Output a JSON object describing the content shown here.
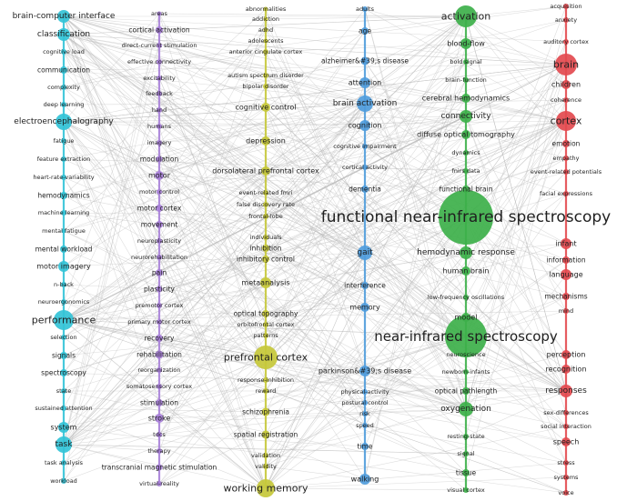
{
  "clusters": [
    {
      "id": "cyan",
      "color": "#33c3d7",
      "nodes": [
        {
          "label": "brain-computer interface",
          "y": 18,
          "r": 7
        },
        {
          "label": "classification",
          "y": 38,
          "r": 7
        },
        {
          "label": "cognitive load",
          "y": 57,
          "r": 3
        },
        {
          "label": "communication",
          "y": 77,
          "r": 4
        },
        {
          "label": "complexity",
          "y": 96,
          "r": 3
        },
        {
          "label": "deep learning",
          "y": 115,
          "r": 3
        },
        {
          "label": "electroencephalography",
          "y": 134,
          "r": 9
        },
        {
          "label": "fatigue",
          "y": 155,
          "r": 3
        },
        {
          "label": "feature extraction",
          "y": 175,
          "r": 3
        },
        {
          "label": "heart-rate-variability",
          "y": 195,
          "r": 3
        },
        {
          "label": "hemodynamics",
          "y": 215,
          "r": 4
        },
        {
          "label": "machine learning",
          "y": 234,
          "r": 3
        },
        {
          "label": "mental fatigue",
          "y": 254,
          "r": 2.5
        },
        {
          "label": "mental workload",
          "y": 274,
          "r": 4
        },
        {
          "label": "motor imagery",
          "y": 293,
          "r": 6
        },
        {
          "label": "n-back",
          "y": 313,
          "r": 3
        },
        {
          "label": "neuroergonomics",
          "y": 332,
          "r": 3
        },
        {
          "label": "performance",
          "y": 352,
          "r": 11
        },
        {
          "label": "selection",
          "y": 371,
          "r": 3
        },
        {
          "label": "signals",
          "y": 391,
          "r": 4
        },
        {
          "label": "spectroscopy",
          "y": 410,
          "r": 4
        },
        {
          "label": "state",
          "y": 430,
          "r": 3
        },
        {
          "label": "sustained attention",
          "y": 449,
          "r": 3
        },
        {
          "label": "system",
          "y": 470,
          "r": 6
        },
        {
          "label": "task",
          "y": 489,
          "r": 9
        },
        {
          "label": "task analysis",
          "y": 509,
          "r": 3
        },
        {
          "label": "workload",
          "y": 529,
          "r": 3
        }
      ]
    },
    {
      "id": "purple",
      "color": "#a77fd8",
      "nodes": [
        {
          "label": "areas",
          "y": 15,
          "r": 2.5
        },
        {
          "label": "cortical activation",
          "y": 33,
          "r": 4
        },
        {
          "label": "direct-current stimulation",
          "y": 50,
          "r": 3
        },
        {
          "label": "effective connectivity",
          "y": 68,
          "r": 3
        },
        {
          "label": "excitability",
          "y": 86,
          "r": 3
        },
        {
          "label": "feedback",
          "y": 103,
          "r": 3
        },
        {
          "label": "hand",
          "y": 121,
          "r": 3
        },
        {
          "label": "humans",
          "y": 139,
          "r": 3
        },
        {
          "label": "imagery",
          "y": 157,
          "r": 3
        },
        {
          "label": "modulation",
          "y": 175,
          "r": 3.5
        },
        {
          "label": "motor",
          "y": 193,
          "r": 5
        },
        {
          "label": "motor control",
          "y": 211,
          "r": 3
        },
        {
          "label": "motor cortex",
          "y": 229,
          "r": 4
        },
        {
          "label": "movement",
          "y": 247,
          "r": 4
        },
        {
          "label": "neuroplasticity",
          "y": 265,
          "r": 3
        },
        {
          "label": "neurorehabilitation",
          "y": 283,
          "r": 3
        },
        {
          "label": "pain",
          "y": 300,
          "r": 4
        },
        {
          "label": "plasticity",
          "y": 318,
          "r": 3.5
        },
        {
          "label": "premotor cortex",
          "y": 336,
          "r": 3
        },
        {
          "label": "primary motor cortex",
          "y": 354,
          "r": 3
        },
        {
          "label": "recovery",
          "y": 372,
          "r": 4
        },
        {
          "label": "rehabilitation",
          "y": 390,
          "r": 4.5
        },
        {
          "label": "reorganization",
          "y": 407,
          "r": 3
        },
        {
          "label": "somatosensory cortex",
          "y": 425,
          "r": 3
        },
        {
          "label": "stimulation",
          "y": 443,
          "r": 4
        },
        {
          "label": "stroke",
          "y": 460,
          "r": 5
        },
        {
          "label": "tdcs",
          "y": 478,
          "r": 3
        },
        {
          "label": "therapy",
          "y": 496,
          "r": 3
        },
        {
          "label": "transcranial magnetic stimulation",
          "y": 514,
          "r": 3.5
        },
        {
          "label": "virtual-reality",
          "y": 532,
          "r": 3
        }
      ]
    },
    {
      "id": "olive",
      "color": "#c5c83a",
      "nodes": [
        {
          "label": "abnormalities",
          "y": 10,
          "r": 2.5
        },
        {
          "label": "addiction",
          "y": 21,
          "r": 2.5
        },
        {
          "label": "adhd",
          "y": 33,
          "r": 2.5
        },
        {
          "label": "adolescents",
          "y": 45,
          "r": 2.5
        },
        {
          "label": "anterior cingulate cortex",
          "y": 57,
          "r": 3
        },
        {
          "label": "autism spectrum disorder",
          "y": 83,
          "r": 3
        },
        {
          "label": "bipolar disorder",
          "y": 95,
          "r": 3
        },
        {
          "label": "cognitive control",
          "y": 118,
          "r": 5
        },
        {
          "label": "depression",
          "y": 155,
          "r": 5
        },
        {
          "label": "dorsolateral prefrontal cortex",
          "y": 188,
          "r": 5
        },
        {
          "label": "event-related fmri",
          "y": 212,
          "r": 3
        },
        {
          "label": "false discovery rate",
          "y": 225,
          "r": 3
        },
        {
          "label": "frontal-lobe",
          "y": 238,
          "r": 3
        },
        {
          "label": "individuals",
          "y": 261,
          "r": 3
        },
        {
          "label": "inhibition",
          "y": 273,
          "r": 4
        },
        {
          "label": "inhibitory control",
          "y": 285,
          "r": 4
        },
        {
          "label": "metaanalysis",
          "y": 311,
          "r": 6
        },
        {
          "label": "optical topography",
          "y": 345,
          "r": 4
        },
        {
          "label": "orbitofrontal cortex",
          "y": 357,
          "r": 3
        },
        {
          "label": "patterns",
          "y": 369,
          "r": 3
        },
        {
          "label": "prefrontal cortex",
          "y": 393,
          "r": 13
        },
        {
          "label": "response-inhibition",
          "y": 418,
          "r": 3
        },
        {
          "label": "reward",
          "y": 430,
          "r": 3
        },
        {
          "label": "schizophrenia",
          "y": 453,
          "r": 4.5
        },
        {
          "label": "spatial registration",
          "y": 478,
          "r": 4.5
        },
        {
          "label": "validation",
          "y": 501,
          "r": 3
        },
        {
          "label": "validity",
          "y": 513,
          "r": 3
        },
        {
          "label": "working memory",
          "y": 537,
          "r": 10
        }
      ]
    },
    {
      "id": "blue",
      "color": "#4f9cdc",
      "nodes": [
        {
          "label": "adults",
          "y": 10,
          "r": 3
        },
        {
          "label": "age",
          "y": 34,
          "r": 4
        },
        {
          "label": "alzheimer&#39;s disease",
          "y": 67,
          "r": 4.5
        },
        {
          "label": "attention",
          "y": 91,
          "r": 6
        },
        {
          "label": "brain activation",
          "y": 114,
          "r": 9
        },
        {
          "label": "cognition",
          "y": 138,
          "r": 6
        },
        {
          "label": "cognitive impairment",
          "y": 161,
          "r": 3
        },
        {
          "label": "cortical activity",
          "y": 184,
          "r": 3
        },
        {
          "label": "dementia",
          "y": 208,
          "r": 4
        },
        {
          "label": "gait",
          "y": 278,
          "r": 8
        },
        {
          "label": "interference",
          "y": 314,
          "r": 4
        },
        {
          "label": "memory",
          "y": 338,
          "r": 5
        },
        {
          "label": "parkinson&#39;s disease",
          "y": 408,
          "r": 6
        },
        {
          "label": "physical-activity",
          "y": 431,
          "r": 3
        },
        {
          "label": "postural control",
          "y": 443,
          "r": 3
        },
        {
          "label": "risk",
          "y": 455,
          "r": 3
        },
        {
          "label": "speed",
          "y": 468,
          "r": 3
        },
        {
          "label": "time",
          "y": 491,
          "r": 4
        },
        {
          "label": "walking",
          "y": 527,
          "r": 6
        }
      ]
    },
    {
      "id": "green",
      "color": "#3db04a",
      "nodes": [
        {
          "label": "activation",
          "y": 18,
          "r": 12
        },
        {
          "label": "blood-flow",
          "y": 48,
          "r": 6
        },
        {
          "label": "bold signal",
          "y": 68,
          "r": 3
        },
        {
          "label": "brain-function",
          "y": 88,
          "r": 3
        },
        {
          "label": "cerebral hemodynamics",
          "y": 108,
          "r": 5
        },
        {
          "label": "connectivity",
          "y": 128,
          "r": 7
        },
        {
          "label": "diffuse optical tomography",
          "y": 148,
          "r": 5
        },
        {
          "label": "dynamics",
          "y": 168,
          "r": 3
        },
        {
          "label": "fnirs data",
          "y": 188,
          "r": 3
        },
        {
          "label": "functional brain",
          "y": 208,
          "r": 4
        },
        {
          "label": "functional near-infrared spectroscopy",
          "y": 239,
          "r": 30
        },
        {
          "label": "hemodynamic response",
          "y": 278,
          "r": 7
        },
        {
          "label": "human brain",
          "y": 298,
          "r": 5
        },
        {
          "label": "low-frequency oscillations",
          "y": 327,
          "r": 3
        },
        {
          "label": "model",
          "y": 349,
          "r": 5
        },
        {
          "label": "near-infrared spectroscopy",
          "y": 370,
          "r": 23
        },
        {
          "label": "neuroscience",
          "y": 390,
          "r": 3
        },
        {
          "label": "newborn-infants",
          "y": 409,
          "r": 3
        },
        {
          "label": "optical pathlength",
          "y": 430,
          "r": 4
        },
        {
          "label": "oxygenation",
          "y": 450,
          "r": 8
        },
        {
          "label": "resting-state",
          "y": 480,
          "r": 3
        },
        {
          "label": "signal",
          "y": 499,
          "r": 3
        },
        {
          "label": "tissue",
          "y": 520,
          "r": 4
        },
        {
          "label": "visual cortex",
          "y": 539,
          "r": 3
        }
      ]
    },
    {
      "id": "red",
      "color": "#e34a4f",
      "nodes": [
        {
          "label": "acquisition",
          "y": 7,
          "r": 3
        },
        {
          "label": "anxiety",
          "y": 22,
          "r": 3
        },
        {
          "label": "auditory cortex",
          "y": 46,
          "r": 3
        },
        {
          "label": "brain",
          "y": 71,
          "r": 12
        },
        {
          "label": "children",
          "y": 93,
          "r": 5
        },
        {
          "label": "coherence",
          "y": 110,
          "r": 3
        },
        {
          "label": "cortex",
          "y": 133,
          "r": 11
        },
        {
          "label": "emotion",
          "y": 158,
          "r": 4
        },
        {
          "label": "empathy",
          "y": 174,
          "r": 3
        },
        {
          "label": "event-related potentials",
          "y": 189,
          "r": 3
        },
        {
          "label": "facial expressions",
          "y": 213,
          "r": 3
        },
        {
          "label": "infant",
          "y": 268,
          "r": 6
        },
        {
          "label": "information",
          "y": 286,
          "r": 4
        },
        {
          "label": "language",
          "y": 302,
          "r": 6
        },
        {
          "label": "mechanisms",
          "y": 326,
          "r": 4
        },
        {
          "label": "mind",
          "y": 342,
          "r": 3
        },
        {
          "label": "perception",
          "y": 390,
          "r": 5
        },
        {
          "label": "recognition",
          "y": 406,
          "r": 5
        },
        {
          "label": "responses",
          "y": 430,
          "r": 7
        },
        {
          "label": "sex-differences",
          "y": 454,
          "r": 3
        },
        {
          "label": "social interaction",
          "y": 469,
          "r": 3
        },
        {
          "label": "speech",
          "y": 486,
          "r": 5
        },
        {
          "label": "stress",
          "y": 509,
          "r": 3
        },
        {
          "label": "systems",
          "y": 525,
          "r": 3
        },
        {
          "label": "voice",
          "y": 542,
          "r": 3
        }
      ]
    }
  ]
}
